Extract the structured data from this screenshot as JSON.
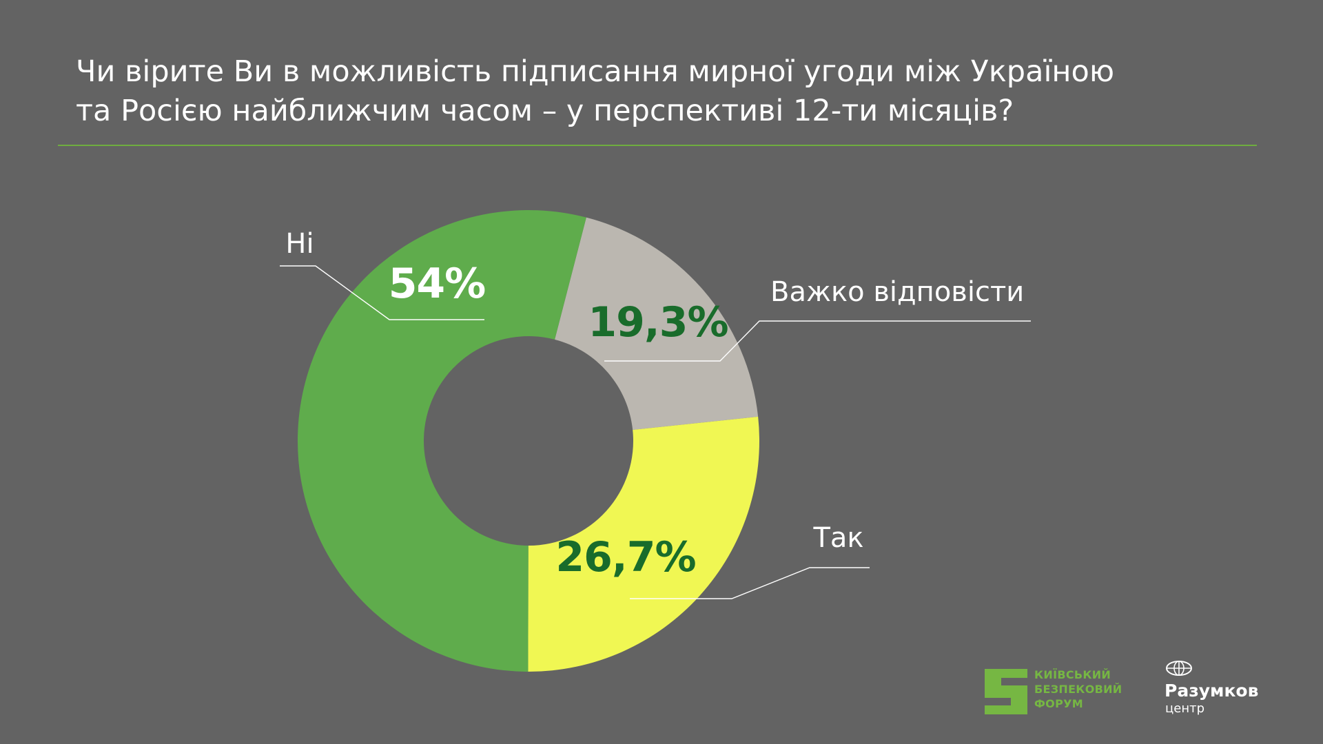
{
  "header": {
    "title_line1": "Чи вірите Ви в можливість підписання мирної угоди між Україною",
    "title_line2": "та Росією найближчим часом – у перспективі 12-ти місяців?"
  },
  "chart_data": {
    "type": "pie",
    "donut": true,
    "slices": [
      {
        "name": "Важко відповісти",
        "value": 19.3,
        "label": "19,3%",
        "color": "#bbb7b0",
        "label_color": "#196c2b"
      },
      {
        "name": "Так",
        "value": 26.7,
        "label": "26,7%",
        "color": "#f0f753",
        "label_color": "#196c2b"
      },
      {
        "name": "Ні",
        "value": 54.0,
        "label": "54%",
        "color": "#5fac4c",
        "label_color": "#ffffff"
      }
    ],
    "start_angle_deg": 14.5,
    "direction": "clockwise",
    "legend": "callouts"
  },
  "logos": {
    "kbf": {
      "line1": "КИЇВСЬКИЙ",
      "line2": "БЕЗПЕКОВИЙ",
      "line3": "ФОРУМ",
      "color": "#76b743"
    },
    "razumkov": {
      "name": "Разумков",
      "sub": "центр"
    }
  }
}
